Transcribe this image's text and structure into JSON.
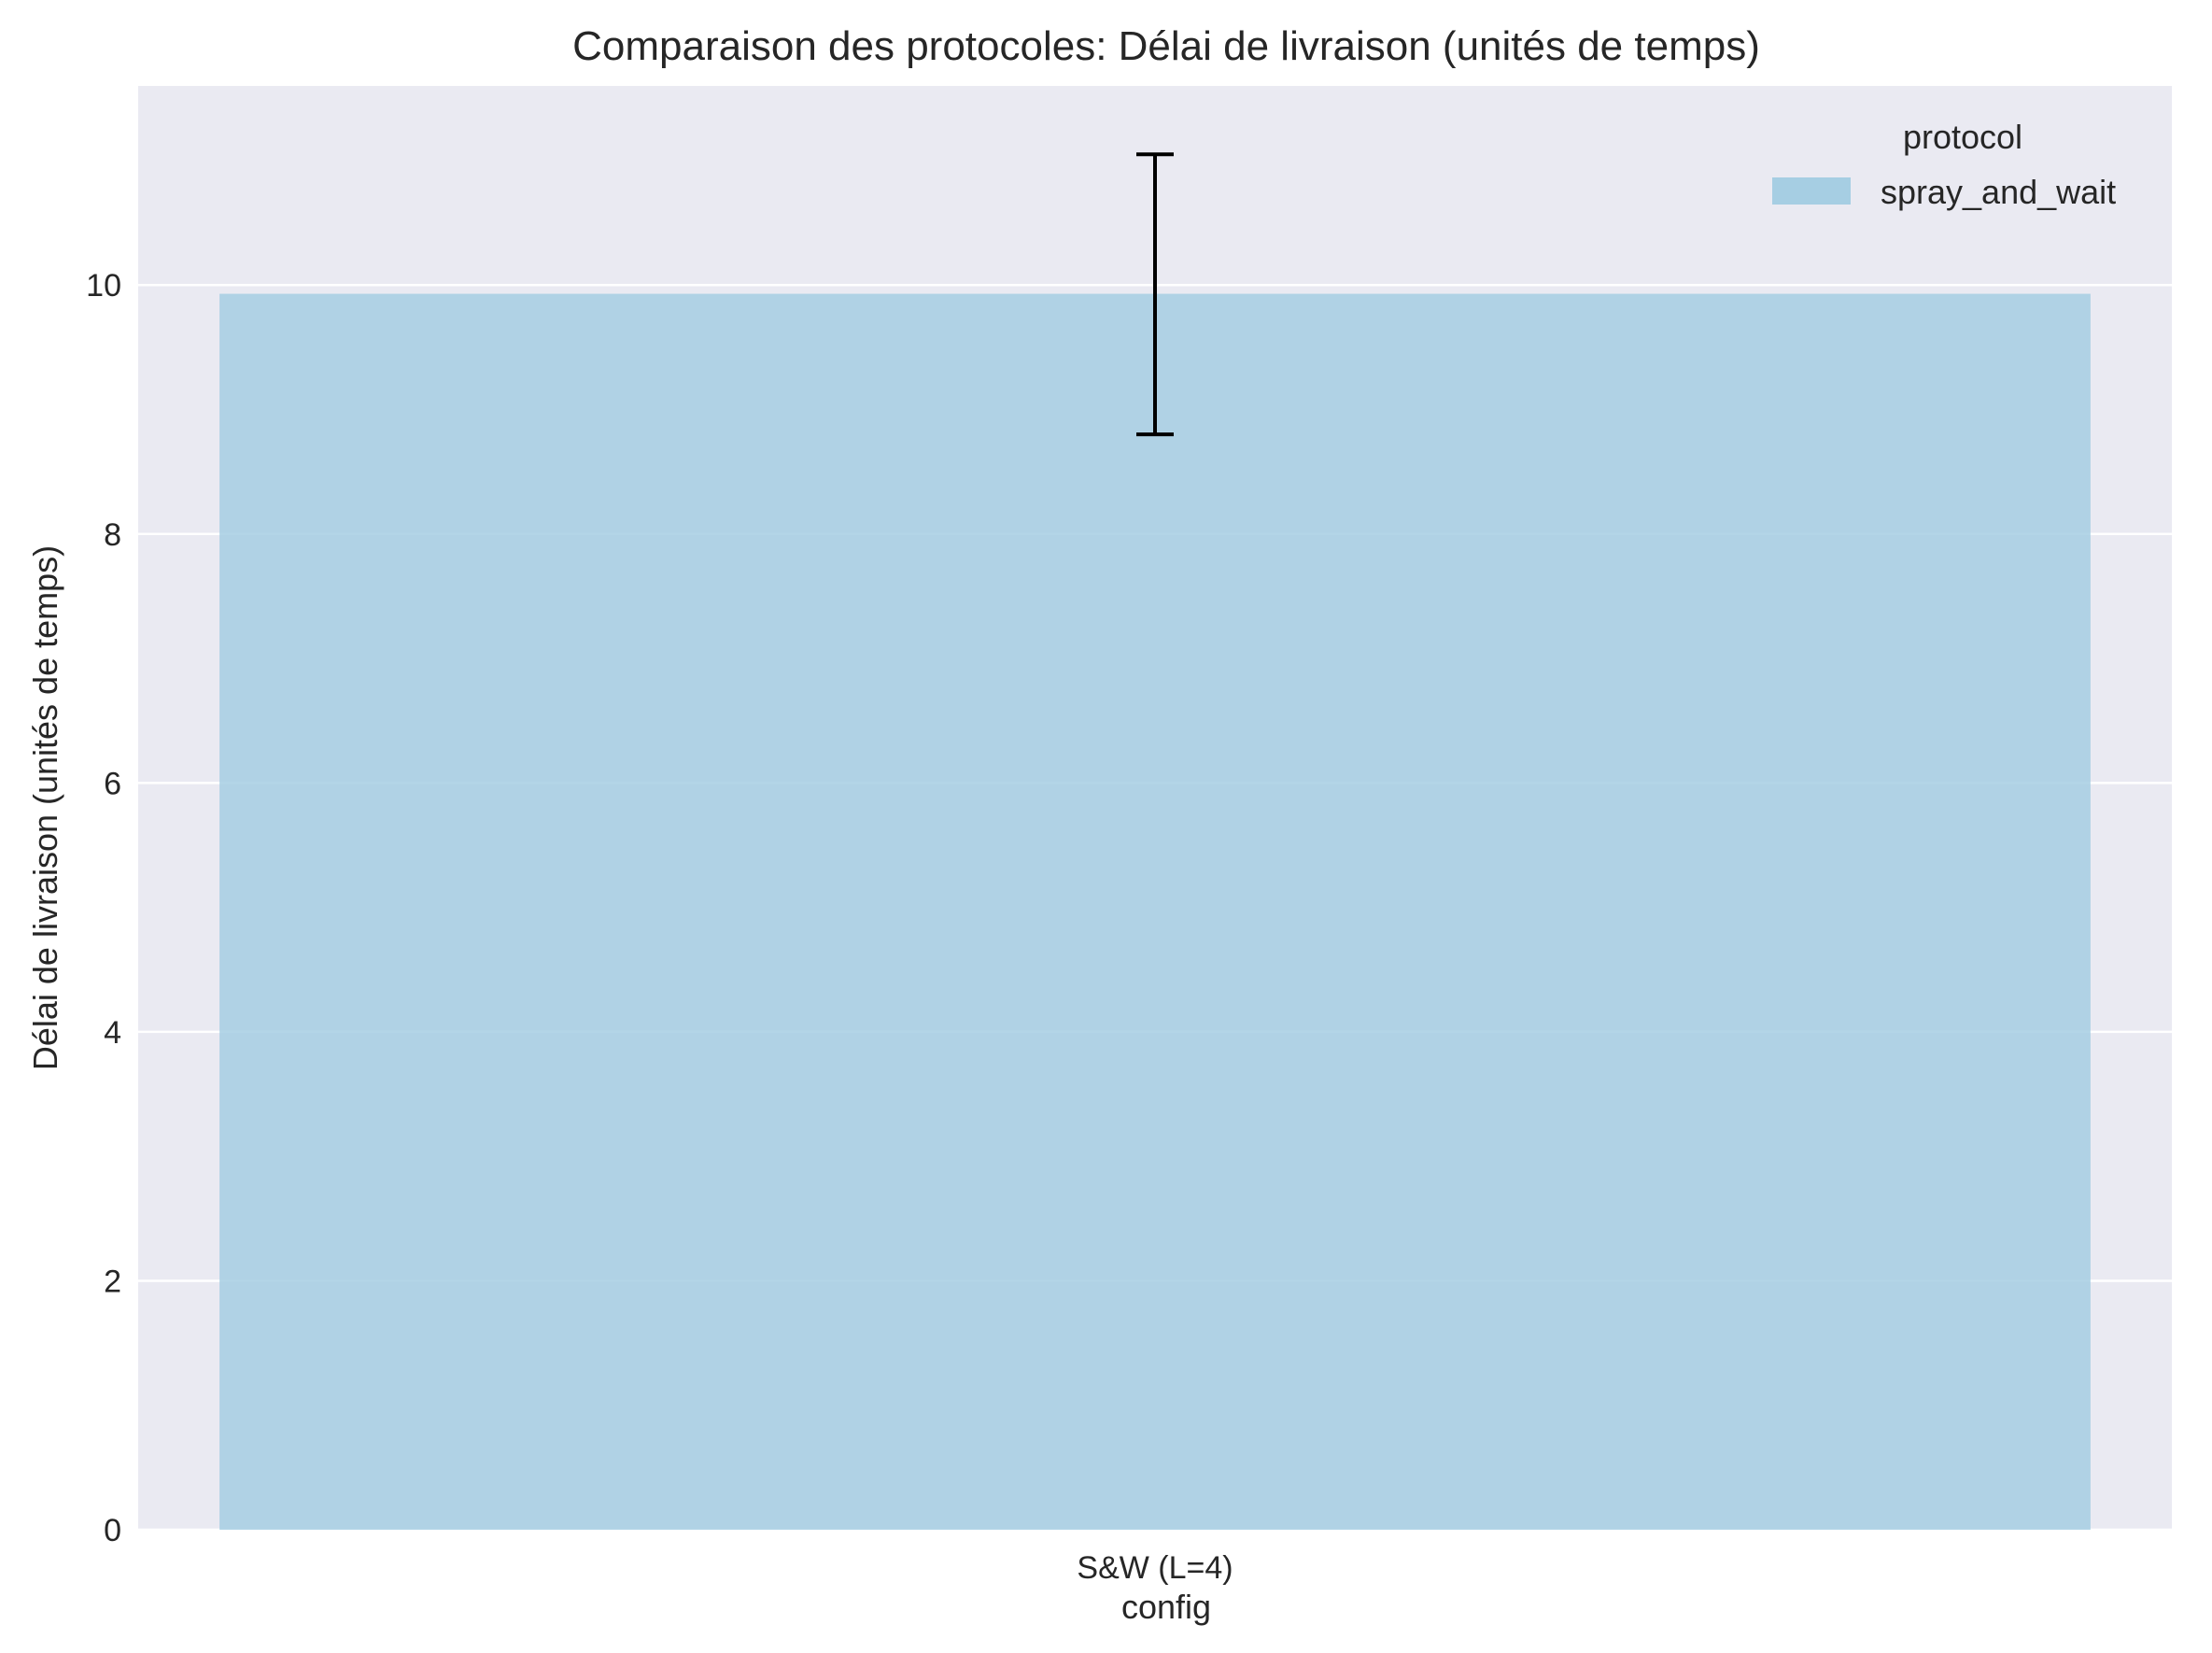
{
  "chart_data": {
    "type": "bar",
    "title": "Comparaison des protocoles: Délai de livraison (unités de temps)",
    "xlabel": "config",
    "ylabel": "Délai de livraison (unités de temps)",
    "categories": [
      "S&W (L=4)"
    ],
    "series": [
      {
        "name": "spray_and_wait",
        "values": [
          9.93
        ],
        "error_low": [
          8.8
        ],
        "error_high": [
          11.05
        ],
        "color": "#a6cee3"
      }
    ],
    "ylim": [
      0,
      11.6
    ],
    "yticks": [
      0,
      2,
      4,
      6,
      8,
      10
    ],
    "grid": true,
    "legend": {
      "title": "protocol",
      "placement": "top-right"
    },
    "colors": {
      "plot_background": "#eaeaf2",
      "grid": "#ffffff",
      "error_bar": "#000000"
    }
  }
}
